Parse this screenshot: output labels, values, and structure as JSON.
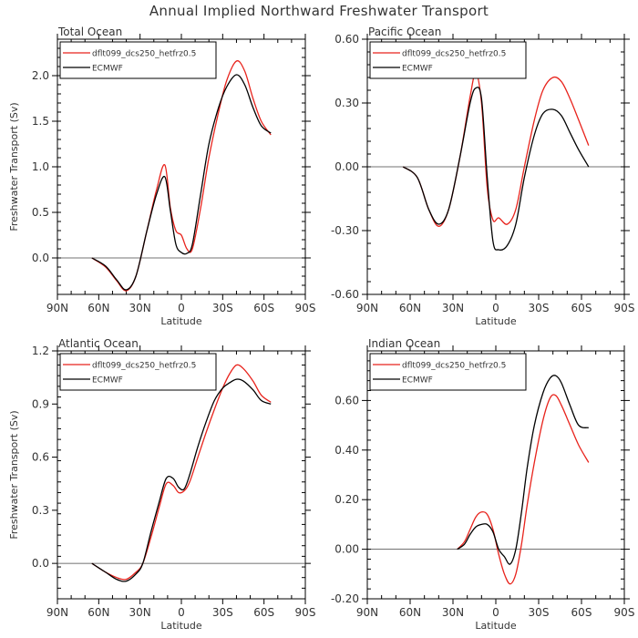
{
  "figure": {
    "title": "Annual Implied Northward Freshwater Transport"
  },
  "chart_data": [
    {
      "type": "line",
      "title": "Total Ocean",
      "xlabel": "Latitude",
      "ylabel": "Freshwater Transport (Sv)",
      "xlim": [
        -90,
        90
      ],
      "ylim": [
        -0.4,
        2.4
      ],
      "xticks": [
        -90,
        -60,
        -30,
        0,
        30,
        60,
        90
      ],
      "xticklabels": [
        "90N",
        "60N",
        "30N",
        "0",
        "30S",
        "60S",
        "90S"
      ],
      "yticks": [
        0.0,
        0.5,
        1.0,
        1.5,
        2.0
      ],
      "yticklabels": [
        "0.0",
        "0.5",
        "1.0",
        "1.5",
        "2.0"
      ],
      "zero_line": true,
      "legend_position": "top-left",
      "series": [
        {
          "name": "dflt099_dcs250_hetfrz0.5",
          "color": "#e8231c",
          "x": [
            -65,
            -55,
            -47,
            -40,
            -33,
            -25,
            -18,
            -12,
            -8,
            -4,
            0,
            4,
            8,
            14,
            20,
            27,
            33,
            40,
            46,
            52,
            58,
            65
          ],
          "y": [
            0.0,
            -0.1,
            -0.25,
            -0.36,
            -0.2,
            0.3,
            0.75,
            1.02,
            0.55,
            0.3,
            0.25,
            0.1,
            0.1,
            0.55,
            1.1,
            1.6,
            1.95,
            2.16,
            2.05,
            1.75,
            1.5,
            1.35
          ]
        },
        {
          "name": "ECMWF",
          "color": "#000000",
          "x": [
            -65,
            -55,
            -47,
            -40,
            -33,
            -25,
            -18,
            -12,
            -8,
            -4,
            0,
            4,
            8,
            14,
            20,
            27,
            33,
            40,
            46,
            52,
            58,
            65
          ],
          "y": [
            0.0,
            -0.09,
            -0.24,
            -0.35,
            -0.2,
            0.3,
            0.7,
            0.89,
            0.52,
            0.15,
            0.06,
            0.05,
            0.15,
            0.7,
            1.25,
            1.65,
            1.88,
            2.01,
            1.9,
            1.65,
            1.45,
            1.37
          ]
        }
      ]
    },
    {
      "type": "line",
      "title": "Pacific Ocean",
      "xlabel": "Latitude",
      "ylabel": "",
      "xlim": [
        -90,
        90
      ],
      "ylim": [
        -0.6,
        0.6
      ],
      "xticks": [
        -90,
        -60,
        -30,
        0,
        30,
        60,
        90
      ],
      "xticklabels": [
        "90N",
        "60N",
        "30N",
        "0",
        "30S",
        "60S",
        "90S"
      ],
      "yticks": [
        -0.6,
        -0.3,
        0.0,
        0.3,
        0.6
      ],
      "yticklabels": [
        "-0.60",
        "-0.30",
        "0.00",
        "0.30",
        "0.60"
      ],
      "zero_line": true,
      "legend_position": "top-left",
      "series": [
        {
          "name": "dflt099_dcs250_hetfrz0.5",
          "color": "#e8231c",
          "x": [
            -65,
            -55,
            -47,
            -40,
            -33,
            -25,
            -18,
            -14,
            -10,
            -6,
            -2,
            2,
            8,
            14,
            20,
            27,
            33,
            40,
            46,
            52,
            58,
            65
          ],
          "y": [
            0.0,
            -0.05,
            -0.2,
            -0.28,
            -0.2,
            0.05,
            0.33,
            0.44,
            0.3,
            -0.1,
            -0.25,
            -0.24,
            -0.27,
            -0.2,
            0.0,
            0.22,
            0.36,
            0.42,
            0.4,
            0.32,
            0.22,
            0.1
          ]
        },
        {
          "name": "ECMWF",
          "color": "#000000",
          "x": [
            -65,
            -55,
            -47,
            -40,
            -33,
            -25,
            -18,
            -14,
            -10,
            -6,
            -2,
            2,
            8,
            14,
            20,
            27,
            33,
            40,
            46,
            52,
            58,
            65
          ],
          "y": [
            0.0,
            -0.05,
            -0.2,
            -0.27,
            -0.2,
            0.05,
            0.3,
            0.37,
            0.32,
            -0.05,
            -0.35,
            -0.39,
            -0.37,
            -0.27,
            -0.05,
            0.15,
            0.25,
            0.27,
            0.24,
            0.16,
            0.08,
            0.0
          ]
        }
      ]
    },
    {
      "type": "line",
      "title": "Atlantic Ocean",
      "xlabel": "Latitude",
      "ylabel": "Freshwater Transport (Sv)",
      "xlim": [
        -90,
        90
      ],
      "ylim": [
        -0.2,
        1.2
      ],
      "xticks": [
        -90,
        -60,
        -30,
        0,
        30,
        60,
        90
      ],
      "xticklabels": [
        "90N",
        "60N",
        "30N",
        "0",
        "30S",
        "60S",
        "90S"
      ],
      "yticks": [
        0.0,
        0.3,
        0.6,
        0.9,
        1.2
      ],
      "yticklabels": [
        "0.0",
        "0.3",
        "0.6",
        "0.9",
        "1.2"
      ],
      "zero_line": true,
      "legend_position": "top-left",
      "series": [
        {
          "name": "dflt099_dcs250_hetfrz0.5",
          "color": "#e8231c",
          "x": [
            -65,
            -55,
            -47,
            -40,
            -33,
            -28,
            -22,
            -16,
            -11,
            -6,
            -2,
            2,
            6,
            12,
            18,
            24,
            30,
            35,
            40,
            45,
            52,
            58,
            65
          ],
          "y": [
            0.0,
            -0.05,
            -0.08,
            -0.09,
            -0.05,
            0.0,
            0.15,
            0.32,
            0.45,
            0.44,
            0.4,
            0.41,
            0.46,
            0.6,
            0.74,
            0.87,
            0.99,
            1.07,
            1.12,
            1.1,
            1.03,
            0.95,
            0.91
          ]
        },
        {
          "name": "ECMWF",
          "color": "#000000",
          "x": [
            -65,
            -55,
            -47,
            -40,
            -33,
            -28,
            -22,
            -16,
            -11,
            -6,
            -2,
            2,
            6,
            12,
            18,
            24,
            30,
            35,
            40,
            45,
            52,
            58,
            65
          ],
          "y": [
            0.0,
            -0.05,
            -0.09,
            -0.1,
            -0.06,
            0.0,
            0.18,
            0.35,
            0.48,
            0.48,
            0.43,
            0.42,
            0.5,
            0.66,
            0.8,
            0.92,
            0.99,
            1.02,
            1.04,
            1.03,
            0.98,
            0.92,
            0.9
          ]
        }
      ]
    },
    {
      "type": "line",
      "title": "Indian Ocean",
      "xlabel": "Latitude",
      "ylabel": "",
      "xlim": [
        -90,
        90
      ],
      "ylim": [
        -0.2,
        0.8
      ],
      "xticks": [
        -90,
        -60,
        -30,
        0,
        30,
        60,
        90
      ],
      "xticklabels": [
        "90N",
        "60N",
        "30N",
        "0",
        "30S",
        "60S",
        "90S"
      ],
      "yticks": [
        -0.2,
        0.0,
        0.2,
        0.4,
        0.6
      ],
      "yticklabels": [
        "-0.20",
        "0.00",
        "0.20",
        "0.40",
        "0.60"
      ],
      "zero_line": true,
      "legend_position": "top-left",
      "series": [
        {
          "name": "dflt099_dcs250_hetfrz0.5",
          "color": "#e8231c",
          "x": [
            -27,
            -22,
            -18,
            -14,
            -10,
            -6,
            -2,
            2,
            6,
            10,
            14,
            18,
            22,
            27,
            33,
            38,
            42,
            46,
            52,
            58,
            65
          ],
          "y": [
            0.0,
            0.03,
            0.08,
            0.13,
            0.15,
            0.14,
            0.08,
            -0.02,
            -0.1,
            -0.14,
            -0.1,
            0.02,
            0.18,
            0.35,
            0.52,
            0.61,
            0.62,
            0.58,
            0.5,
            0.42,
            0.35
          ]
        },
        {
          "name": "ECMWF",
          "color": "#000000",
          "x": [
            -27,
            -22,
            -18,
            -14,
            -10,
            -6,
            -2,
            2,
            6,
            10,
            14,
            18,
            22,
            27,
            33,
            38,
            42,
            46,
            52,
            58,
            65
          ],
          "y": [
            0.0,
            0.02,
            0.06,
            0.09,
            0.1,
            0.1,
            0.07,
            0.0,
            -0.03,
            -0.06,
            0.0,
            0.15,
            0.33,
            0.5,
            0.63,
            0.69,
            0.7,
            0.67,
            0.58,
            0.5,
            0.49
          ]
        }
      ]
    }
  ]
}
